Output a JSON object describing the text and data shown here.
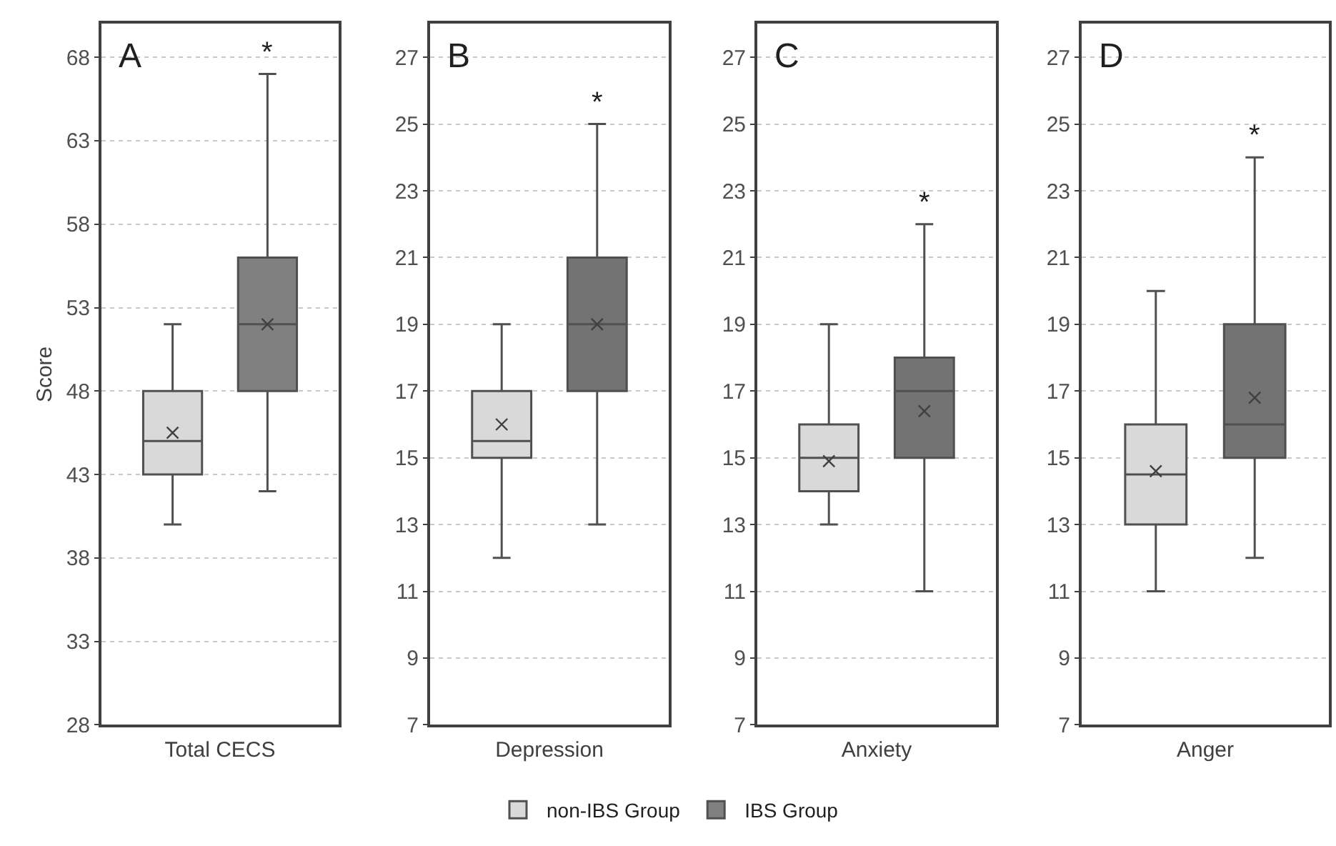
{
  "chart_data": [
    {
      "type": "box",
      "title": "A",
      "xlabel": "Total CECS",
      "ylabel": "Score",
      "categories": [
        null,
        null
      ],
      "ylim": [
        28,
        70
      ],
      "yticks": [
        28,
        33,
        38,
        43,
        48,
        53,
        58,
        63,
        68
      ],
      "grid": "y",
      "legend": "bottom",
      "series": [
        {
          "name": "non-IBS Group",
          "color": "#d9d9d9",
          "boxes": [
            {
              "low": 40,
              "q1": 43,
              "median": 45,
              "q3": 48,
              "high": 52,
              "mean": 45.5
            },
            null
          ]
        },
        {
          "name": "IBS Group",
          "color": "#808080",
          "boxes": [
            null,
            {
              "low": 42,
              "q1": 48,
              "median": 52,
              "q3": 56,
              "high": 67,
              "mean": 52
            }
          ]
        }
      ],
      "annotations": [
        "*"
      ]
    },
    {
      "type": "box",
      "title": "B",
      "xlabel": "Depression",
      "categories": [
        null,
        null
      ],
      "ylim": [
        7,
        28
      ],
      "yticks": [
        7,
        9,
        11,
        13,
        15,
        17,
        19,
        21,
        23,
        25,
        27
      ],
      "grid": "y",
      "legend": false,
      "series": [
        {
          "color": "#d9d9d9",
          "boxes": [
            {
              "low": 12,
              "q1": 15,
              "median": 15.5,
              "q3": 17,
              "high": 19,
              "mean": 16
            },
            null
          ]
        },
        {
          "color": "#737373",
          "boxes": [
            null,
            {
              "low": 13,
              "q1": 17,
              "median": 19,
              "q3": 21,
              "high": 25,
              "mean": 19
            }
          ]
        }
      ],
      "annotations": [
        "*"
      ]
    },
    {
      "type": "box",
      "title": "C",
      "xlabel": "Anxiety",
      "categories": [
        null,
        null
      ],
      "ylim": [
        7,
        28
      ],
      "yticks": [
        7,
        9,
        11,
        13,
        15,
        17,
        19,
        21,
        23,
        25,
        27
      ],
      "grid": "y",
      "legend": false,
      "series": [
        {
          "color": "#d9d9d9",
          "boxes": [
            {
              "low": 13,
              "q1": 14,
              "median": 15,
              "q3": 16,
              "high": 19,
              "mean": 14.9
            },
            null
          ]
        },
        {
          "color": "#737373",
          "boxes": [
            null,
            {
              "low": 11,
              "q1": 15,
              "median": 17,
              "q3": 18,
              "high": 22,
              "mean": 16.4
            }
          ]
        }
      ],
      "annotations": [
        "*"
      ]
    },
    {
      "type": "box",
      "title": "D",
      "xlabel": "Anger",
      "categories": [
        null,
        null
      ],
      "ylim": [
        7,
        28
      ],
      "yticks": [
        7,
        9,
        11,
        13,
        15,
        17,
        19,
        21,
        23,
        25,
        27
      ],
      "grid": "y",
      "legend": false,
      "series": [
        {
          "color": "#d9d9d9",
          "boxes": [
            {
              "low": 11,
              "q1": 13,
              "median": 14.5,
              "q3": 16,
              "high": 20,
              "mean": 14.6
            },
            null
          ]
        },
        {
          "color": "#737373",
          "boxes": [
            null,
            {
              "low": 12,
              "q1": 15,
              "median": 16,
              "q3": 19,
              "high": 24,
              "mean": 16.8
            }
          ]
        }
      ],
      "annotations": [
        "*"
      ]
    }
  ]
}
